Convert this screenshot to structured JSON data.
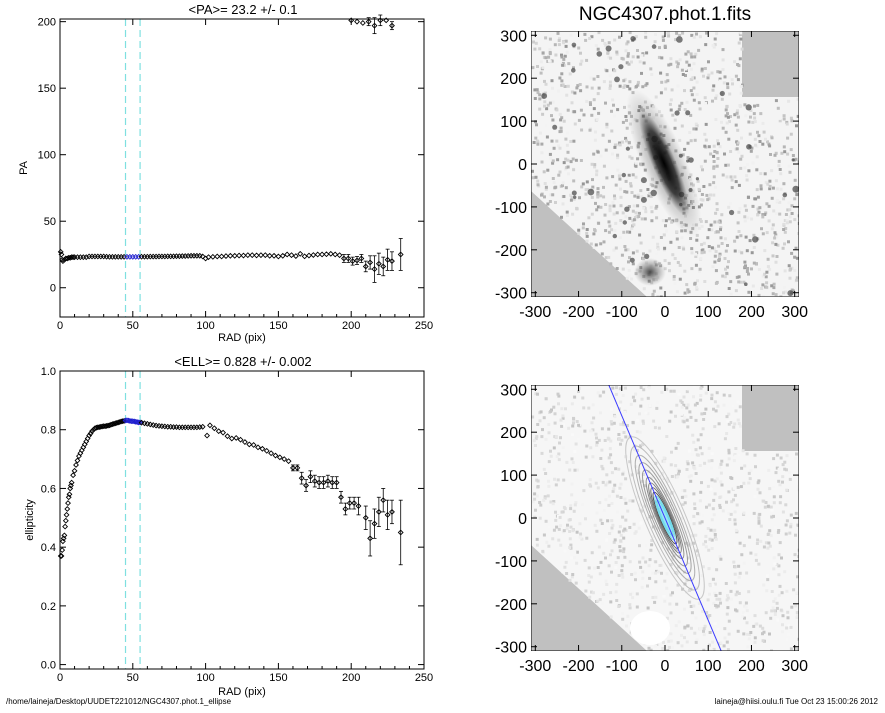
{
  "footer": {
    "path": "/home/laineja/Desktop/UUDET221012/NGC4307.phot.1_ellipse",
    "stamp": "laineja@hiisi.oulu.fi  Tue Oct 23 15:00:26 2012"
  },
  "guide_lines": {
    "x": [
      45,
      55
    ],
    "color": "#7fe0e0"
  },
  "colors": {
    "data": "#000000",
    "highlight": "#1f1fcf",
    "image_bg": "#c0c0c0",
    "contour_light": "#b8b8b8",
    "contour_core": "#6ad9ea"
  },
  "chart_data": [
    {
      "id": "pa",
      "type": "scatter",
      "title": "<PA>=  23.2 +/-   0.1",
      "xlabel": "RAD (pix)",
      "ylabel": "PA",
      "xlim": [
        0,
        250
      ],
      "ylim": [
        -22,
        202
      ],
      "xticks": [
        0,
        50,
        100,
        150,
        200,
        250
      ],
      "yticks": [
        0,
        50,
        100,
        150,
        200
      ],
      "highlight_range": [
        45,
        55
      ],
      "points": [
        [
          0.5,
          27
        ],
        [
          1,
          25
        ],
        [
          1.5,
          21
        ],
        [
          2,
          20
        ],
        [
          3,
          21
        ],
        [
          4,
          22
        ],
        [
          5,
          22
        ],
        [
          6,
          22.5
        ],
        [
          7,
          22.5
        ],
        [
          8,
          23
        ],
        [
          9,
          23
        ],
        [
          10,
          23
        ],
        [
          12,
          23
        ],
        [
          14,
          23
        ],
        [
          16,
          23
        ],
        [
          18,
          23
        ],
        [
          20,
          23.5
        ],
        [
          22,
          23.5
        ],
        [
          24,
          23.5
        ],
        [
          26,
          23.5
        ],
        [
          28,
          23.5
        ],
        [
          30,
          23.5
        ],
        [
          32,
          23.3
        ],
        [
          34,
          23.2
        ],
        [
          36,
          23.2
        ],
        [
          38,
          23.2
        ],
        [
          40,
          23.2
        ],
        [
          42,
          23.2
        ],
        [
          44,
          23.2
        ],
        [
          46,
          23.2
        ],
        [
          48,
          23.2
        ],
        [
          50,
          23.2
        ],
        [
          52,
          23.2
        ],
        [
          54,
          23.2
        ],
        [
          56,
          23.3
        ],
        [
          58,
          23.3
        ],
        [
          60,
          23.3
        ],
        [
          62,
          23.4
        ],
        [
          64,
          23.4
        ],
        [
          66,
          23.4
        ],
        [
          68,
          23.5
        ],
        [
          70,
          23.5
        ],
        [
          72,
          23.5
        ],
        [
          74,
          23.6
        ],
        [
          76,
          23.6
        ],
        [
          78,
          23.6
        ],
        [
          80,
          23.7
        ],
        [
          82,
          23.7
        ],
        [
          84,
          23.8
        ],
        [
          86,
          23.8
        ],
        [
          88,
          23.9
        ],
        [
          90,
          24
        ],
        [
          92,
          24
        ],
        [
          94,
          24
        ],
        [
          96,
          24
        ],
        [
          98,
          23.5
        ],
        [
          100,
          22
        ],
        [
          102,
          23
        ],
        [
          105,
          23.2
        ],
        [
          108,
          23.5
        ],
        [
          111,
          23.5
        ],
        [
          114,
          23.8
        ],
        [
          117,
          24
        ],
        [
          120,
          24
        ],
        [
          123,
          24.2
        ],
        [
          126,
          24.2
        ],
        [
          129,
          24.5
        ],
        [
          132,
          24.5
        ],
        [
          135,
          24.3
        ],
        [
          138,
          24.5
        ],
        [
          141,
          24.5
        ],
        [
          144,
          24
        ],
        [
          147,
          24
        ],
        [
          150,
          23.5
        ],
        [
          153,
          24
        ],
        [
          156,
          25
        ],
        [
          159,
          24.5
        ],
        [
          162,
          23.8
        ],
        [
          165,
          25.5
        ],
        [
          168,
          23.6
        ],
        [
          171,
          24.2
        ],
        [
          174,
          24.6
        ],
        [
          177,
          25
        ],
        [
          180,
          25
        ],
        [
          183,
          25.2
        ],
        [
          186,
          25.5
        ],
        [
          189,
          25
        ],
        [
          192,
          24.5
        ],
        [
          195,
          22
        ],
        [
          198,
          22
        ],
        [
          201,
          20
        ],
        [
          204,
          20.5
        ],
        [
          207,
          22
        ],
        [
          210,
          16
        ],
        [
          213,
          19
        ],
        [
          216,
          14
        ],
        [
          219,
          18
        ],
        [
          222,
          16
        ],
        [
          225,
          21
        ],
        [
          228,
          20
        ],
        [
          234,
          25
        ]
      ],
      "top_points": [
        [
          200,
          201
        ],
        [
          204,
          200
        ],
        [
          208,
          199
        ],
        [
          212,
          200
        ],
        [
          216,
          197
        ],
        [
          220,
          201
        ],
        [
          224,
          201
        ],
        [
          228,
          197
        ]
      ],
      "error_bars": [
        [
          195,
          3
        ],
        [
          198,
          3
        ],
        [
          201,
          3
        ],
        [
          204,
          3
        ],
        [
          207,
          3
        ],
        [
          210,
          4
        ],
        [
          213,
          5
        ],
        [
          216,
          10
        ],
        [
          219,
          8
        ],
        [
          222,
          7
        ],
        [
          225,
          8
        ],
        [
          228,
          7
        ],
        [
          234,
          12
        ]
      ],
      "top_error_bars": [
        [
          212,
          3
        ],
        [
          216,
          6
        ],
        [
          220,
          4
        ],
        [
          228,
          3
        ]
      ]
    },
    {
      "id": "ell",
      "type": "scatter",
      "title": "<ELL>= 0.828 +/-  0.002",
      "xlabel": "RAD (pix)",
      "ylabel": "ellipticity",
      "xlim": [
        0,
        250
      ],
      "ylim": [
        -0.015,
        1.0
      ],
      "xticks": [
        0,
        50,
        100,
        150,
        200,
        250
      ],
      "yticks": [
        0.0,
        0.2,
        0.4,
        0.6,
        0.8,
        1.0
      ],
      "ytick_labels": [
        "0.0",
        "0.2",
        "0.4",
        "0.6",
        "0.8",
        "1.0"
      ],
      "highlight_range": [
        45,
        55
      ],
      "points": [
        [
          0.5,
          0.37
        ],
        [
          1,
          0.37
        ],
        [
          1.5,
          0.39
        ],
        [
          2,
          0.42
        ],
        [
          2.5,
          0.43
        ],
        [
          3,
          0.44
        ],
        [
          3.5,
          0.47
        ],
        [
          4,
          0.49
        ],
        [
          4.5,
          0.51
        ],
        [
          5,
          0.53
        ],
        [
          5.5,
          0.55
        ],
        [
          6,
          0.57
        ],
        [
          6.5,
          0.58
        ],
        [
          7,
          0.6
        ],
        [
          7.5,
          0.61
        ],
        [
          8,
          0.62
        ],
        [
          9,
          0.645
        ],
        [
          10,
          0.66
        ],
        [
          11,
          0.68
        ],
        [
          12,
          0.695
        ],
        [
          13,
          0.71
        ],
        [
          14,
          0.72
        ],
        [
          15,
          0.73
        ],
        [
          16,
          0.74
        ],
        [
          17,
          0.75
        ],
        [
          18,
          0.76
        ],
        [
          19,
          0.77
        ],
        [
          20,
          0.78
        ],
        [
          21,
          0.787
        ],
        [
          22,
          0.795
        ],
        [
          23,
          0.8
        ],
        [
          24,
          0.805
        ],
        [
          25,
          0.807
        ],
        [
          26,
          0.808
        ],
        [
          27,
          0.809
        ],
        [
          28,
          0.81
        ],
        [
          29,
          0.811
        ],
        [
          30,
          0.812
        ],
        [
          31,
          0.812
        ],
        [
          32,
          0.813
        ],
        [
          33,
          0.814
        ],
        [
          34,
          0.815
        ],
        [
          35,
          0.817
        ],
        [
          36,
          0.819
        ],
        [
          37,
          0.82
        ],
        [
          38,
          0.822
        ],
        [
          39,
          0.823
        ],
        [
          40,
          0.825
        ],
        [
          41,
          0.826
        ],
        [
          42,
          0.828
        ],
        [
          43,
          0.829
        ],
        [
          44,
          0.83
        ],
        [
          45,
          0.831
        ],
        [
          46,
          0.832
        ],
        [
          47,
          0.831
        ],
        [
          48,
          0.83
        ],
        [
          49,
          0.829
        ],
        [
          50,
          0.829
        ],
        [
          51,
          0.828
        ],
        [
          52,
          0.827
        ],
        [
          53,
          0.826
        ],
        [
          54,
          0.825
        ],
        [
          55,
          0.825
        ],
        [
          56,
          0.824
        ],
        [
          58,
          0.822
        ],
        [
          60,
          0.82
        ],
        [
          62,
          0.818
        ],
        [
          64,
          0.816
        ],
        [
          66,
          0.814
        ],
        [
          68,
          0.813
        ],
        [
          70,
          0.812
        ],
        [
          72,
          0.811
        ],
        [
          74,
          0.81
        ],
        [
          76,
          0.81
        ],
        [
          78,
          0.809
        ],
        [
          80,
          0.809
        ],
        [
          82,
          0.808
        ],
        [
          84,
          0.808
        ],
        [
          86,
          0.808
        ],
        [
          88,
          0.808
        ],
        [
          90,
          0.808
        ],
        [
          92,
          0.808
        ],
        [
          94,
          0.808
        ],
        [
          96,
          0.809
        ],
        [
          98,
          0.81
        ],
        [
          101,
          0.78
        ],
        [
          103,
          0.815
        ],
        [
          106,
          0.805
        ],
        [
          109,
          0.795
        ],
        [
          112,
          0.79
        ],
        [
          115,
          0.778
        ],
        [
          118,
          0.77
        ],
        [
          121,
          0.772
        ],
        [
          124,
          0.766
        ],
        [
          127,
          0.758
        ],
        [
          130,
          0.75
        ],
        [
          133,
          0.748
        ],
        [
          136,
          0.74
        ],
        [
          139,
          0.735
        ],
        [
          142,
          0.728
        ],
        [
          145,
          0.72
        ],
        [
          148,
          0.712
        ],
        [
          151,
          0.706
        ],
        [
          154,
          0.7
        ],
        [
          157,
          0.693
        ],
        [
          160,
          0.67
        ],
        [
          163,
          0.67
        ],
        [
          166,
          0.635
        ],
        [
          169,
          0.61
        ],
        [
          172,
          0.64
        ],
        [
          175,
          0.625
        ],
        [
          178,
          0.62
        ],
        [
          181,
          0.62
        ],
        [
          184,
          0.625
        ],
        [
          187,
          0.62
        ],
        [
          190,
          0.62
        ],
        [
          193,
          0.57
        ],
        [
          196,
          0.53
        ],
        [
          199,
          0.55
        ],
        [
          202,
          0.55
        ],
        [
          205,
          0.54
        ],
        [
          210,
          0.5
        ],
        [
          213,
          0.43
        ],
        [
          216,
          0.48
        ],
        [
          219,
          0.52
        ],
        [
          222,
          0.56
        ],
        [
          225,
          0.51
        ],
        [
          228,
          0.52
        ],
        [
          234,
          0.45
        ]
      ],
      "error_bars": [
        [
          160,
          0.01
        ],
        [
          163,
          0.01
        ],
        [
          166,
          0.02
        ],
        [
          169,
          0.02
        ],
        [
          172,
          0.02
        ],
        [
          175,
          0.02
        ],
        [
          178,
          0.02
        ],
        [
          181,
          0.02
        ],
        [
          184,
          0.02
        ],
        [
          187,
          0.02
        ],
        [
          190,
          0.02
        ],
        [
          193,
          0.02
        ],
        [
          196,
          0.02
        ],
        [
          199,
          0.02
        ],
        [
          202,
          0.02
        ],
        [
          205,
          0.03
        ],
        [
          210,
          0.04
        ],
        [
          213,
          0.06
        ],
        [
          216,
          0.05
        ],
        [
          219,
          0.05
        ],
        [
          222,
          0.04
        ],
        [
          225,
          0.05
        ],
        [
          228,
          0.04
        ],
        [
          234,
          0.11
        ]
      ]
    },
    {
      "id": "image",
      "type": "heatmap",
      "title": "NGC4307.phot.1.fits",
      "xlim": [
        -310,
        310
      ],
      "ylim": [
        -310,
        310
      ],
      "xticks": [
        -300,
        -200,
        -100,
        0,
        100,
        200,
        300
      ],
      "yticks": [
        -300,
        -200,
        -100,
        0,
        100,
        200,
        300
      ],
      "galaxy": {
        "center": [
          0,
          0
        ],
        "pa_deg": 23.2,
        "ellipticity": 0.828
      }
    },
    {
      "id": "model",
      "type": "heatmap",
      "title": "",
      "xlim": [
        -310,
        310
      ],
      "ylim": [
        -310,
        310
      ],
      "xticks": [
        -300,
        -200,
        -100,
        0,
        100,
        200,
        300
      ],
      "yticks": [
        -300,
        -200,
        -100,
        0,
        100,
        200,
        300
      ],
      "pa_line": {
        "from": [
          -130,
          310
        ],
        "to": [
          130,
          -310
        ]
      }
    }
  ]
}
